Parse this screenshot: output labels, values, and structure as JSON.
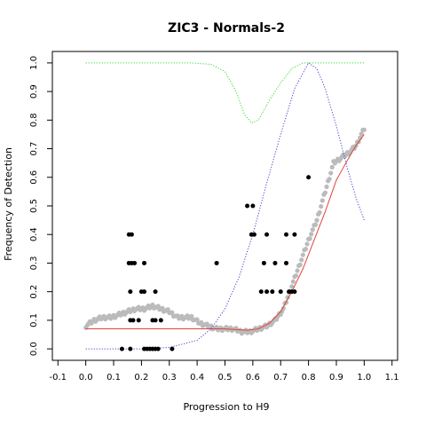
{
  "chart_data": {
    "type": "scatter",
    "title": "ZIC3 - Normals-2",
    "xlabel": "Progression to H9",
    "ylabel": "Frequency of Detection",
    "xlim": [
      -0.12,
      1.12
    ],
    "ylim": [
      -0.04,
      1.04
    ],
    "x_ticks": [
      -0.1,
      0.0,
      0.1,
      0.2,
      0.3,
      0.4,
      0.5,
      0.6,
      0.7,
      0.8,
      0.9,
      1.0,
      1.1
    ],
    "x_tick_labels": [
      "-0.1",
      "0.0",
      "0.1",
      "0.2",
      "0.3",
      "0.4",
      "0.5",
      "0.6",
      "0.7",
      "0.8",
      "0.9",
      "1.0",
      "1.1"
    ],
    "y_ticks": [
      0.0,
      0.1,
      0.2,
      0.3,
      0.4,
      0.5,
      0.6,
      0.7,
      0.8,
      0.9,
      1.0
    ],
    "y_tick_labels": [
      "0.0",
      "0.1",
      "0.2",
      "0.3",
      "0.4",
      "0.5",
      "0.6",
      "0.7",
      "0.8",
      "0.9",
      "1.0"
    ],
    "grid": false,
    "legend": "none",
    "series": [
      {
        "kind": "points",
        "color": "#000000",
        "points": [
          [
            0.13,
            0.0
          ],
          [
            0.16,
            0.0
          ],
          [
            0.21,
            0.0
          ],
          [
            0.22,
            0.0
          ],
          [
            0.23,
            0.0
          ],
          [
            0.24,
            0.0
          ],
          [
            0.25,
            0.0
          ],
          [
            0.26,
            0.0
          ],
          [
            0.31,
            0.0
          ],
          [
            0.16,
            0.1
          ],
          [
            0.17,
            0.1
          ],
          [
            0.19,
            0.1
          ],
          [
            0.24,
            0.1
          ],
          [
            0.25,
            0.1
          ],
          [
            0.27,
            0.1
          ],
          [
            0.16,
            0.2
          ],
          [
            0.2,
            0.2
          ],
          [
            0.21,
            0.2
          ],
          [
            0.25,
            0.2
          ],
          [
            0.155,
            0.3
          ],
          [
            0.165,
            0.3
          ],
          [
            0.175,
            0.3
          ],
          [
            0.21,
            0.3
          ],
          [
            0.155,
            0.4
          ],
          [
            0.165,
            0.4
          ],
          [
            0.47,
            0.3
          ],
          [
            0.58,
            0.5
          ],
          [
            0.6,
            0.5
          ],
          [
            0.595,
            0.4
          ],
          [
            0.605,
            0.4
          ],
          [
            0.64,
            0.3
          ],
          [
            0.68,
            0.3
          ],
          [
            0.72,
            0.3
          ],
          [
            0.65,
            0.4
          ],
          [
            0.72,
            0.4
          ],
          [
            0.75,
            0.4
          ],
          [
            0.63,
            0.2
          ],
          [
            0.65,
            0.2
          ],
          [
            0.67,
            0.2
          ],
          [
            0.7,
            0.2
          ],
          [
            0.73,
            0.2
          ],
          [
            0.74,
            0.2
          ],
          [
            0.75,
            0.2
          ],
          [
            0.8,
            0.6
          ]
        ]
      },
      {
        "kind": "smoothed-points",
        "color": "#bbbbbb",
        "points": [
          [
            0.0,
            0.08
          ],
          [
            0.03,
            0.1
          ],
          [
            0.06,
            0.11
          ],
          [
            0.09,
            0.11
          ],
          [
            0.12,
            0.12
          ],
          [
            0.15,
            0.13
          ],
          [
            0.18,
            0.14
          ],
          [
            0.21,
            0.14
          ],
          [
            0.24,
            0.15
          ],
          [
            0.27,
            0.14
          ],
          [
            0.3,
            0.13
          ],
          [
            0.33,
            0.11
          ],
          [
            0.36,
            0.11
          ],
          [
            0.38,
            0.11
          ],
          [
            0.41,
            0.09
          ],
          [
            0.44,
            0.08
          ],
          [
            0.47,
            0.07
          ],
          [
            0.5,
            0.07
          ],
          [
            0.53,
            0.07
          ],
          [
            0.56,
            0.06
          ],
          [
            0.59,
            0.06
          ],
          [
            0.62,
            0.07
          ],
          [
            0.65,
            0.08
          ],
          [
            0.68,
            0.1
          ],
          [
            0.71,
            0.14
          ],
          [
            0.74,
            0.22
          ],
          [
            0.77,
            0.3
          ],
          [
            0.8,
            0.38
          ],
          [
            0.83,
            0.45
          ],
          [
            0.86,
            0.55
          ],
          [
            0.89,
            0.65
          ],
          [
            0.92,
            0.67
          ],
          [
            0.95,
            0.69
          ],
          [
            0.97,
            0.71
          ],
          [
            1.0,
            0.77
          ]
        ]
      },
      {
        "kind": "line",
        "style": "solid",
        "color": "#e0443c",
        "points": [
          [
            0.0,
            0.07
          ],
          [
            0.1,
            0.07
          ],
          [
            0.2,
            0.07
          ],
          [
            0.3,
            0.07
          ],
          [
            0.4,
            0.07
          ],
          [
            0.5,
            0.07
          ],
          [
            0.58,
            0.065
          ],
          [
            0.62,
            0.07
          ],
          [
            0.66,
            0.09
          ],
          [
            0.7,
            0.13
          ],
          [
            0.74,
            0.2
          ],
          [
            0.78,
            0.28
          ],
          [
            0.82,
            0.38
          ],
          [
            0.86,
            0.48
          ],
          [
            0.9,
            0.59
          ],
          [
            0.94,
            0.66
          ],
          [
            0.97,
            0.71
          ],
          [
            1.0,
            0.75
          ]
        ]
      },
      {
        "kind": "line",
        "style": "dotted",
        "color": "#33dd33",
        "points": [
          [
            0.0,
            1.0
          ],
          [
            0.38,
            1.0
          ],
          [
            0.45,
            0.995
          ],
          [
            0.5,
            0.97
          ],
          [
            0.54,
            0.9
          ],
          [
            0.57,
            0.82
          ],
          [
            0.595,
            0.79
          ],
          [
            0.62,
            0.8
          ],
          [
            0.66,
            0.87
          ],
          [
            0.7,
            0.93
          ],
          [
            0.74,
            0.98
          ],
          [
            0.78,
            1.0
          ],
          [
            0.9,
            1.0
          ],
          [
            1.0,
            1.0
          ]
        ]
      },
      {
        "kind": "line",
        "style": "dotted",
        "color": "#4444cc",
        "points": [
          [
            0.0,
            0.0
          ],
          [
            0.2,
            0.0
          ],
          [
            0.3,
            0.005
          ],
          [
            0.4,
            0.03
          ],
          [
            0.45,
            0.07
          ],
          [
            0.5,
            0.14
          ],
          [
            0.55,
            0.25
          ],
          [
            0.6,
            0.4
          ],
          [
            0.65,
            0.58
          ],
          [
            0.7,
            0.75
          ],
          [
            0.75,
            0.91
          ],
          [
            0.8,
            1.0
          ],
          [
            0.83,
            0.98
          ],
          [
            0.86,
            0.91
          ],
          [
            0.9,
            0.78
          ],
          [
            0.94,
            0.63
          ],
          [
            0.97,
            0.53
          ],
          [
            1.0,
            0.45
          ]
        ]
      }
    ]
  }
}
